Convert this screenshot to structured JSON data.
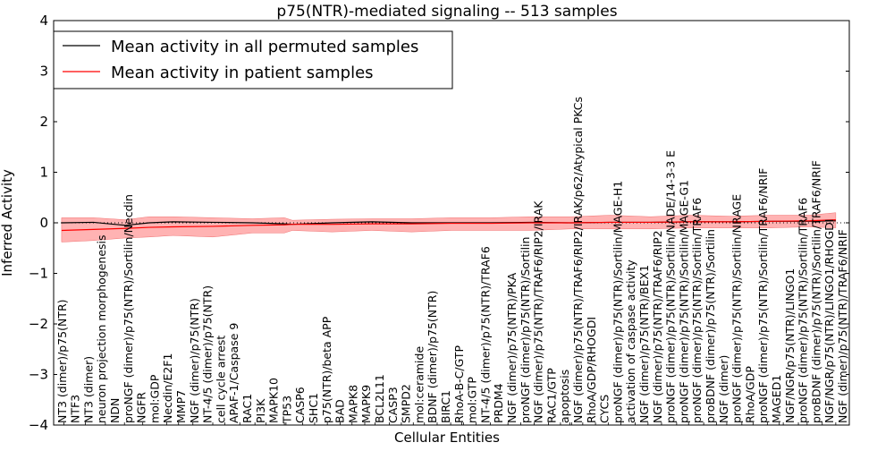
{
  "chart_data": {
    "type": "line",
    "title": "p75(NTR)-mediated signaling -- 513 samples",
    "xlabel": "Cellular Entities",
    "ylabel": "Inferred Activity",
    "ylim": [
      -4,
      4
    ],
    "xlim": [
      0,
      100
    ],
    "yticks": [
      -4,
      -3,
      -2,
      -1,
      0,
      1,
      2,
      3,
      4
    ],
    "yticklabels": [
      "−4",
      "−3",
      "−2",
      "−1",
      "0",
      "1",
      "2",
      "3",
      "4"
    ],
    "grid": false,
    "legend_position": "top-left",
    "legend": [
      "Mean activity in all permuted samples",
      "Mean activity in patient samples"
    ],
    "colors": {
      "permuted": "#000000",
      "patient": "#ff0000",
      "band": "#ff9999"
    },
    "x": [
      1,
      5,
      9,
      12,
      15,
      20,
      25,
      29,
      30,
      35,
      40,
      45,
      50,
      55,
      60,
      65,
      70,
      75,
      80,
      85,
      90,
      95,
      98.3
    ],
    "series": [
      {
        "name": "Mean activity in all permuted samples",
        "values": [
          0.0,
          0.01,
          -0.05,
          0.0,
          0.02,
          0.01,
          0.0,
          -0.02,
          -0.03,
          0.0,
          0.02,
          0.0,
          0.0,
          0.0,
          0.01,
          0.0,
          0.01,
          0.01,
          0.02,
          0.02,
          0.03,
          0.03,
          0.04
        ]
      },
      {
        "name": "Mean activity in patient samples",
        "values": [
          -0.15,
          -0.13,
          -0.11,
          -0.09,
          -0.08,
          -0.07,
          -0.05,
          -0.04,
          -0.03,
          -0.03,
          -0.02,
          -0.02,
          -0.01,
          -0.01,
          0.0,
          0.0,
          0.01,
          0.01,
          0.02,
          0.02,
          0.03,
          0.04,
          0.06
        ]
      },
      {
        "name": "Patient upper band",
        "values": [
          0.1,
          0.1,
          0.06,
          0.12,
          0.12,
          0.1,
          0.08,
          0.1,
          0.05,
          0.07,
          0.08,
          0.08,
          0.1,
          0.1,
          0.12,
          0.12,
          0.15,
          0.12,
          0.15,
          0.13,
          0.15,
          0.15,
          0.2
        ]
      },
      {
        "name": "Patient lower band",
        "values": [
          -0.38,
          -0.35,
          -0.3,
          -0.28,
          -0.25,
          -0.28,
          -0.2,
          -0.2,
          -0.15,
          -0.18,
          -0.15,
          -0.18,
          -0.15,
          -0.15,
          -0.15,
          -0.12,
          -0.12,
          -0.12,
          -0.1,
          -0.1,
          -0.1,
          -0.08,
          -0.1
        ]
      }
    ],
    "entities": [
      {
        "label": "NT3 (dimer)/p75(NTR)",
        "x": 1.3
      },
      {
        "label": "NTF3",
        "x": 4.0
      },
      {
        "label": "NT3 (dimer)",
        "x": 6.5
      },
      {
        "label": "neuron projection morphogenesis",
        "x": 8.9
      },
      {
        "label": "NDN",
        "x": 11.2
      },
      {
        "label": "proNGF (dimer)/p75(NTR)/Sortilin/Necdin",
        "x": 14.2
      },
      {
        "label": "NGFR",
        "x": 15.7
      },
      {
        "label": "mol:GDP",
        "x": 17.5
      },
      {
        "label": "Necdin/E2F1",
        "x": 20.0
      },
      {
        "label": "MMP7",
        "x": 21.5
      },
      {
        "label": "NGF (dimer)/p75(NTR)",
        "x": 23.4
      },
      {
        "label": "NT-4/5 (dimer)/p75(NTR)",
        "x": 25.3
      },
      {
        "label": "cell cycle arrest",
        "x": 26.7
      },
      {
        "label": "APAF-1/Caspase 9",
        "x": 29.0
      },
      {
        "label": "RAC1",
        "x": 29.2
      },
      {
        "label": "PI3K",
        "x": 31.3
      },
      {
        "label": "MAPK10",
        "x": 32.8
      },
      {
        "label": "TP53",
        "x": 34.4
      },
      {
        "label": "CASP6",
        "x": 36.0
      },
      {
        "label": "SHC1",
        "x": 37.5
      },
      {
        "label": "p75(NTR)/beta APP",
        "x": 39.1
      },
      {
        "label": "BAD",
        "x": 40.4
      },
      {
        "label": "MAPK8",
        "x": 42.2
      },
      {
        "label": "MAPK9",
        "x": 43.7
      },
      {
        "label": "BCL2L11",
        "x": 45.2
      },
      {
        "label": "CASP3",
        "x": 46.6
      },
      {
        "label": "SMPD2",
        "x": 48.2
      },
      {
        "label": "mol:ceramide",
        "x": 49.9
      },
      {
        "label": "BDNF (dimer)/p75(NTR)",
        "x": 51.3
      },
      {
        "label": "BIRC1",
        "x": 51.5
      },
      {
        "label": "RhoA-B-C/GTP",
        "x": 53.1
      },
      {
        "label": "mol:GTP",
        "x": 54.9
      },
      {
        "label": "NT-4/5 (dimer)/p75(NTR)/TRAF6",
        "x": 57.1
      },
      {
        "label": "PRDM4",
        "x": 58.7
      },
      {
        "label": "NGF (dimer)/p75(NTR)/PKA",
        "x": 60.4
      },
      {
        "label": "proNGF (dimer)/p75(NTR)/Sortilin",
        "x": 62.2
      },
      {
        "label": "NGF (dimer)/p75(NTR)/TRAF6/RIP2/IRAK",
        "x": 63.7
      },
      {
        "label": "RAC1/GTP",
        "x": 64.9
      },
      {
        "label": "apoptosis",
        "x": 65.1
      },
      {
        "label": "NGF (dimer)/p75(NTR)/TRAF6/RIP2/IRAK/p62/Atypical PKCs",
        "x": 66.5
      },
      {
        "label": "RhoA/GDP/RHOGDI",
        "x": 68.1
      },
      {
        "label": "CYCS",
        "x": 69.7
      },
      {
        "label": "proNGF (dimer)/p75(NTR)/Sortilin/MAGE-H1",
        "x": 71.3
      },
      {
        "label": "activation of caspase activity",
        "x": 73.1
      },
      {
        "label": "NGF (dimer)/p75(NTR)/BEX1",
        "x": 74.7
      },
      {
        "label": "NGF (dimer)/p75(NTR)/TRAF6/RIP2",
        "x": 76.4
      },
      {
        "label": "proNGF (dimer)/p75(NTR)/Sortilin/NADE/14-3-3 E",
        "x": 78.3
      },
      {
        "label": "proNGF (dimer)/p75(NTR)/Sortilin/MAGE-G1",
        "x": 79.8
      },
      {
        "label": "proNGF (dimer)/p75(NTR)/Sortilin/TRAF6",
        "x": 81.7
      },
      {
        "label": "proBDNF (dimer)/p75(NTR)/Sortilin",
        "x": 83.3
      },
      {
        "label": "NGF (dimer)",
        "x": 84.6
      },
      {
        "label": "proNGF (dimer)/p75(NTR)/Sortilin/NRAGE",
        "x": 86.5
      },
      {
        "label": "RhoA/GDP",
        "x": 87.9
      },
      {
        "label": "proNGF (dimer)/p75(NTR)/Sortilin/TRAF6/NRIF",
        "x": 89.7
      },
      {
        "label": "MAGED1",
        "x": 91.2
      },
      {
        "label": "NGF/NGR/p75(NTR)/LINGO1",
        "x": 91.7
      },
      {
        "label": "proNGF (dimer)/p75(NTR)/Sortilin/TRAF6",
        "x": 93.6
      },
      {
        "label": "proBDNF (dimer)/p75(NTR)/Sortilin/TRAF6/NRIF",
        "x": 94.7
      },
      {
        "label": "NGF/NGR/p75(NTR)/LINGO1/RHOGDI",
        "x": 96.6
      },
      {
        "label": "NGF (dimer)/p75(NTR)/TRAF6/NRIF",
        "x": 98.3
      }
    ]
  }
}
